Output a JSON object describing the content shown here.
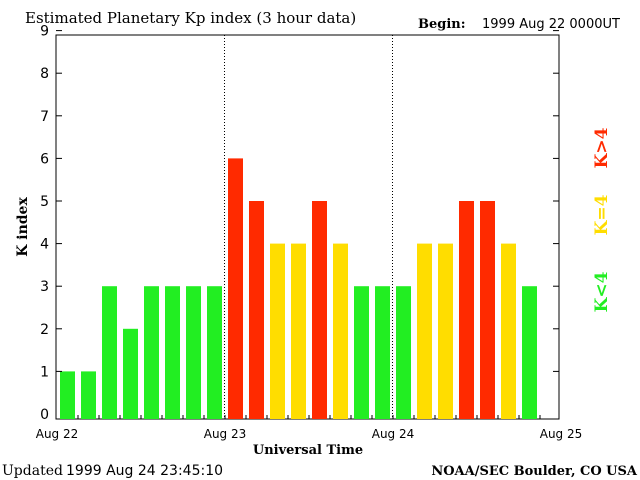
{
  "chart_data": {
    "type": "bar",
    "title": "Estimated Planetary Kp index (3 hour data)",
    "begin_label": "Begin:",
    "begin_value": "1999 Aug 22 0000UT",
    "xlabel": "Universal Time",
    "ylabel": "K index",
    "ylim": [
      0,
      9
    ],
    "yticks": [
      "0",
      "1",
      "2",
      "3",
      "4",
      "5",
      "6",
      "7",
      "8",
      "9"
    ],
    "day_ticks": [
      "Aug 22",
      "Aug 23",
      "Aug 24",
      "Aug 25"
    ],
    "bins_per_day": 8,
    "values": [
      1,
      1,
      3,
      2,
      3,
      3,
      3,
      3,
      6,
      5,
      4,
      4,
      5,
      4,
      3,
      3,
      3,
      4,
      4,
      5,
      5,
      4,
      3
    ],
    "legend": [
      {
        "label": "K<4",
        "color": "#22ee22"
      },
      {
        "label": "K=4",
        "color": "#ffdd00"
      },
      {
        "label": "K>4",
        "color": "#ff2a00"
      }
    ],
    "colors": {
      "low": "#22ee22",
      "mid": "#ffdd00",
      "high": "#ff2a00"
    }
  },
  "footer": {
    "updated_label": "Updated",
    "updated_value": "1999 Aug 24 23:45:10",
    "source": "NOAA/SEC Boulder, CO USA"
  }
}
